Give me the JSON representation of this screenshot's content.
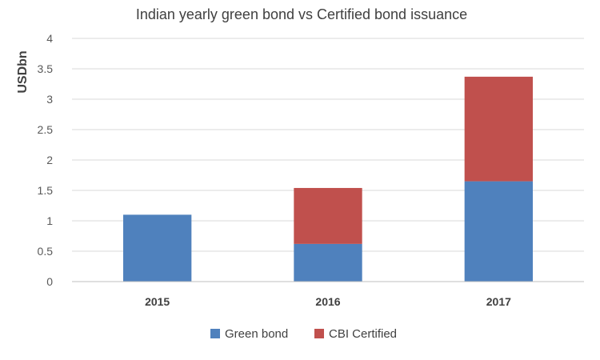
{
  "chart_data": {
    "type": "bar",
    "stacked": true,
    "title": "Indian yearly green bond vs Certified bond issuance",
    "xlabel": "",
    "ylabel": "USDbn",
    "categories": [
      "2015",
      "2016",
      "2017"
    ],
    "series": [
      {
        "name": "Green bond",
        "values": [
          1.1,
          0.62,
          1.65
        ],
        "color": "#4f81bd"
      },
      {
        "name": "CBI Certified",
        "values": [
          0,
          0.92,
          1.72
        ],
        "color": "#c0504d"
      }
    ],
    "ylim": [
      0,
      4
    ],
    "yticks": [
      "0",
      "0.5",
      "1",
      "1.5",
      "2",
      "2.5",
      "3",
      "3.5",
      "4"
    ],
    "grid": true,
    "legend_position": "bottom"
  }
}
